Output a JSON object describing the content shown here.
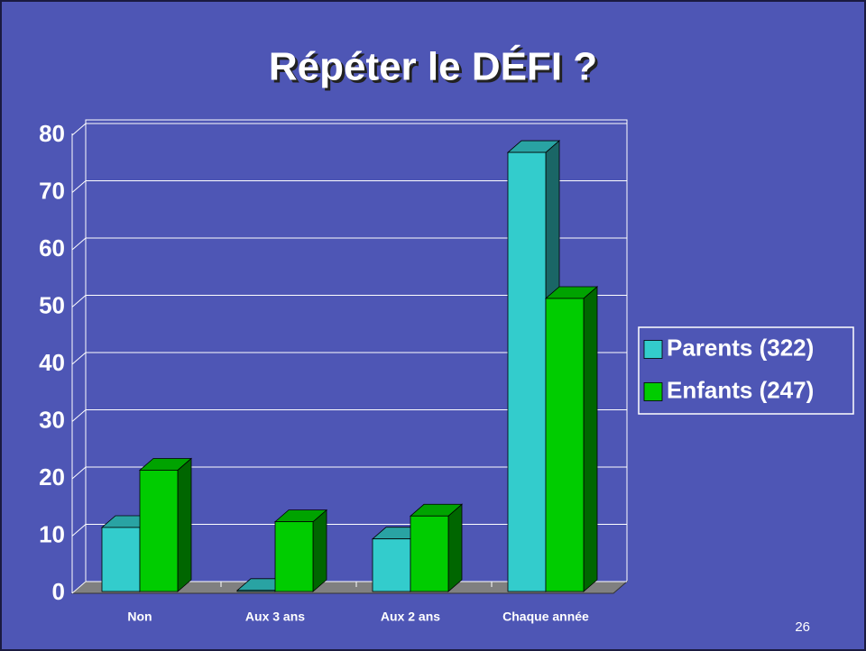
{
  "chart_data": {
    "type": "bar3d",
    "title": "Répéter le DÉFI ?",
    "categories": [
      "Non",
      "Aux 3 ans",
      "Aux 2 ans",
      "Chaque année"
    ],
    "series": [
      {
        "name": "Parents (322)",
        "color": "#33cccc",
        "values": [
          11.5,
          0.5,
          9.5,
          77
        ]
      },
      {
        "name": "Enfants (247)",
        "color": "#00cc00",
        "values": [
          21.5,
          12.5,
          13.5,
          51.5
        ]
      }
    ],
    "ylim": [
      0,
      80
    ],
    "yticks": [
      0,
      10,
      20,
      30,
      40,
      50,
      60,
      70,
      80
    ],
    "grid": true,
    "legend": "right"
  },
  "slide_number": "26"
}
